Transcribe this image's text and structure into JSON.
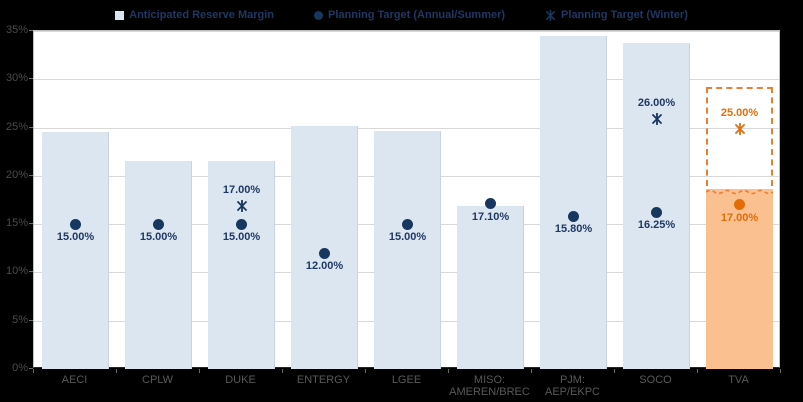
{
  "legend": {
    "items": [
      {
        "label": "Anticipated Reserve Margin",
        "marker": "square"
      },
      {
        "label": "Planning Target (Annual/Summer)",
        "marker": "circle"
      },
      {
        "label": "Planning Target (Winter)",
        "marker": "star"
      }
    ]
  },
  "colors": {
    "background": "#000000",
    "plot_background": "#ffffff",
    "bar_fill": "#dce6f1",
    "bar_edge": "#c6d3e8",
    "marker_navy": "#17375e",
    "label_navy": "#1f3864",
    "highlight_fill": "#fac090",
    "highlight_accent": "#e36c09",
    "highlight_dash": "#ed7d31",
    "gridline": "#d9d9d9",
    "axis_text": "#595959"
  },
  "axis": {
    "y_tick_values": [
      0,
      5,
      10,
      15,
      20,
      25,
      30,
      35
    ],
    "y_tick_labels": [
      "0%",
      "5%",
      "10%",
      "15%",
      "20%",
      "25%",
      "30%",
      "35%"
    ]
  },
  "chart_data": {
    "type": "bar",
    "title": "",
    "xlabel": "",
    "ylabel": "",
    "ylim": [
      0,
      35
    ],
    "grid": true,
    "legend_position": "top",
    "categories": [
      "AECI",
      "CPLW",
      "DUKE",
      "ENTERGY",
      "LGEE",
      "MISO: AMEREN/BREC",
      "PJM: AEP/EKPC",
      "SOCO",
      "TVA"
    ],
    "category_label_lines": [
      [
        "AECI"
      ],
      [
        "CPLW"
      ],
      [
        "DUKE"
      ],
      [
        "ENTERGY"
      ],
      [
        "LGEE"
      ],
      [
        "MISO:",
        "AMEREN/BREC"
      ],
      [
        "PJM:",
        "AEP/EKPC"
      ],
      [
        "SOCO"
      ],
      [
        "TVA"
      ]
    ],
    "series": [
      {
        "name": "Anticipated Reserve Margin",
        "type": "bar",
        "values": [
          24.5,
          21.5,
          21.5,
          25.2,
          24.6,
          16.9,
          34.5,
          33.8,
          19.0
        ]
      },
      {
        "name": "Planning Target (Annual/Summer)",
        "type": "point-circle",
        "values": [
          15.0,
          15.0,
          15.0,
          12.0,
          15.0,
          17.1,
          15.8,
          16.25,
          17.0
        ],
        "labels": [
          "15.00%",
          "15.00%",
          "15.00%",
          "12.00%",
          "15.00%",
          "17.10%",
          "15.80%",
          "16.25%",
          "17.00%"
        ]
      },
      {
        "name": "Planning Target (Winter)",
        "type": "point-star",
        "values": [
          null,
          null,
          17.0,
          null,
          null,
          null,
          null,
          26.0,
          25.0
        ],
        "labels": [
          null,
          null,
          "17.00%",
          null,
          null,
          null,
          null,
          "26.00%",
          "25.00%"
        ]
      }
    ],
    "highlight": {
      "index": 8,
      "dashed_range_top": 29.2
    }
  }
}
